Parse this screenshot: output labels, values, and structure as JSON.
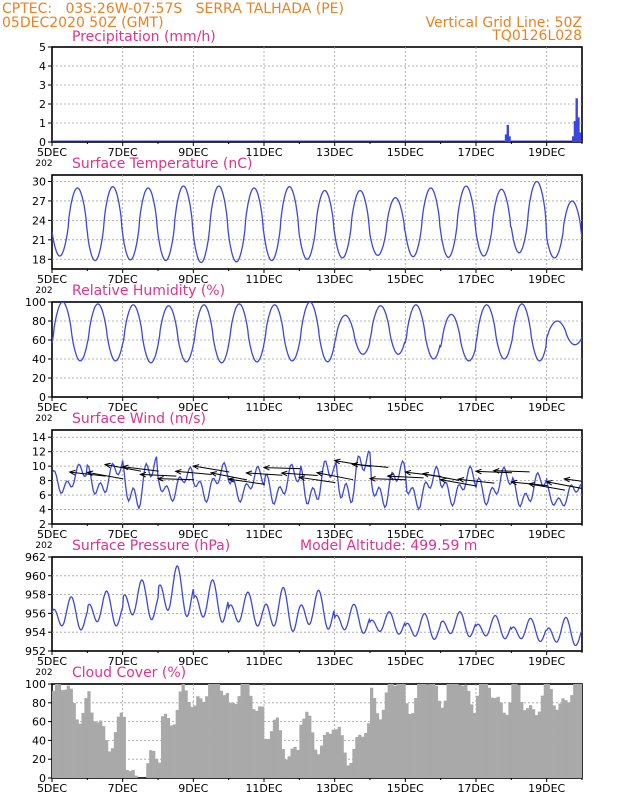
{
  "header": {
    "station_line": "CPTEC:   03S:26W-07:57S   SERRA TALHADA (PE)",
    "date_line": "05DEC2020 50Z (GMT)",
    "grid_note": "Vertical Grid Line: 50Z",
    "run_code": "TQ0126L028"
  },
  "colors": {
    "header": "#f07f1f",
    "panel_title": "#e6308a",
    "series": "#3b48e0",
    "cloud": "#a9a9a9",
    "grid": "#a0a0a0"
  },
  "x_axis": {
    "tick_labels": [
      "5DEC",
      "7DEC",
      "9DEC",
      "11DEC",
      "13DEC",
      "15DEC",
      "17DEC",
      "19DEC"
    ],
    "range_days": [
      5,
      20.0
    ],
    "year_fragment": "202"
  },
  "chart_data": [
    {
      "type": "bar",
      "title": "Precipitation (mm/h)",
      "ylim": [
        0,
        5
      ],
      "yticks": [
        0,
        1,
        2,
        3,
        4,
        5
      ],
      "events": [
        {
          "day": 17.85,
          "value": 0.4
        },
        {
          "day": 17.9,
          "value": 0.9
        },
        {
          "day": 17.95,
          "value": 0.3
        },
        {
          "day": 19.75,
          "value": 0.3
        },
        {
          "day": 19.8,
          "value": 1.1
        },
        {
          "day": 19.85,
          "value": 2.3
        },
        {
          "day": 19.9,
          "value": 1.3
        },
        {
          "day": 19.95,
          "value": 0.5
        }
      ]
    },
    {
      "type": "line",
      "title": "Surface Temperature (nC)",
      "ylim": [
        16.5,
        31
      ],
      "yticks": [
        18,
        21,
        24,
        27,
        30
      ],
      "daily": [
        {
          "min": 18.5,
          "max": 29.0
        },
        {
          "min": 17.8,
          "max": 29.2
        },
        {
          "min": 17.9,
          "max": 29.0
        },
        {
          "min": 17.8,
          "max": 29.3
        },
        {
          "min": 17.5,
          "max": 29.3
        },
        {
          "min": 17.6,
          "max": 29.0
        },
        {
          "min": 17.8,
          "max": 29.2
        },
        {
          "min": 18.0,
          "max": 28.6
        },
        {
          "min": 18.2,
          "max": 28.6
        },
        {
          "min": 18.6,
          "max": 27.5
        },
        {
          "min": 18.4,
          "max": 29.0
        },
        {
          "min": 18.3,
          "max": 29.3
        },
        {
          "min": 18.5,
          "max": 28.8
        },
        {
          "min": 19.0,
          "max": 30.0
        },
        {
          "min": 18.2,
          "max": 27.0
        }
      ]
    },
    {
      "type": "line",
      "title": "Relative Humidity (%)",
      "ylim": [
        0,
        100
      ],
      "yticks": [
        0,
        20,
        40,
        60,
        80,
        100
      ],
      "daily": [
        {
          "min": 38,
          "max": 100
        },
        {
          "min": 38,
          "max": 98
        },
        {
          "min": 36,
          "max": 97
        },
        {
          "min": 37,
          "max": 96
        },
        {
          "min": 36,
          "max": 97
        },
        {
          "min": 37,
          "max": 98
        },
        {
          "min": 38,
          "max": 97
        },
        {
          "min": 37,
          "max": 100
        },
        {
          "min": 45,
          "max": 86
        },
        {
          "min": 45,
          "max": 96
        },
        {
          "min": 40,
          "max": 97
        },
        {
          "min": 38,
          "max": 87
        },
        {
          "min": 40,
          "max": 97
        },
        {
          "min": 38,
          "max": 98
        },
        {
          "min": 55,
          "max": 80
        }
      ]
    },
    {
      "type": "line",
      "title": "Surface Wind (m/s)",
      "ylim": [
        2,
        15
      ],
      "yticks": [
        2,
        4,
        6,
        8,
        10,
        12,
        14
      ],
      "daily": [
        {
          "min": 6,
          "max": 10.5
        },
        {
          "min": 5.5,
          "max": 11
        },
        {
          "min": 3.5,
          "max": 12
        },
        {
          "min": 5,
          "max": 10
        },
        {
          "min": 5,
          "max": 10.5
        },
        {
          "min": 5,
          "max": 10
        },
        {
          "min": 4.5,
          "max": 10.5
        },
        {
          "min": 4,
          "max": 11.5
        },
        {
          "min": 4,
          "max": 13
        },
        {
          "min": 4,
          "max": 11
        },
        {
          "min": 4,
          "max": 10
        },
        {
          "min": 4.5,
          "max": 10
        },
        {
          "min": 4.5,
          "max": 10
        },
        {
          "min": 4,
          "max": 9.5
        },
        {
          "min": 4,
          "max": 8
        }
      ],
      "vector_markers": "wind direction arrows"
    },
    {
      "type": "line",
      "title": "Surface Pressure (hPa)",
      "annotation": "Model Altitude: 499.59 m",
      "ylim": [
        952,
        962
      ],
      "yticks": [
        952,
        954,
        956,
        958,
        960,
        962
      ],
      "daily": [
        {
          "min": 953.8,
          "max": 957.8
        },
        {
          "min": 954.2,
          "max": 958.4
        },
        {
          "min": 954.8,
          "max": 959.6
        },
        {
          "min": 955.0,
          "max": 961.1
        },
        {
          "min": 954.5,
          "max": 959.6
        },
        {
          "min": 954.2,
          "max": 958.3
        },
        {
          "min": 953.5,
          "max": 958.8
        },
        {
          "min": 953.8,
          "max": 958.5
        },
        {
          "min": 953.5,
          "max": 957.0
        },
        {
          "min": 953.5,
          "max": 956.2
        },
        {
          "min": 952.9,
          "max": 956.0
        },
        {
          "min": 953.2,
          "max": 956.2
        },
        {
          "min": 953.0,
          "max": 955.8
        },
        {
          "min": 952.7,
          "max": 955.5
        },
        {
          "min": 952.2,
          "max": 955.6
        }
      ]
    },
    {
      "type": "area",
      "title": "Cloud Cover (%)",
      "ylim": [
        0,
        100
      ],
      "yticks": [
        0,
        20,
        40,
        60,
        80,
        100
      ],
      "daily_mean": [
        85,
        55,
        10,
        75,
        95,
        85,
        40,
        50,
        40,
        90,
        92,
        96,
        90,
        85,
        92
      ]
    }
  ]
}
